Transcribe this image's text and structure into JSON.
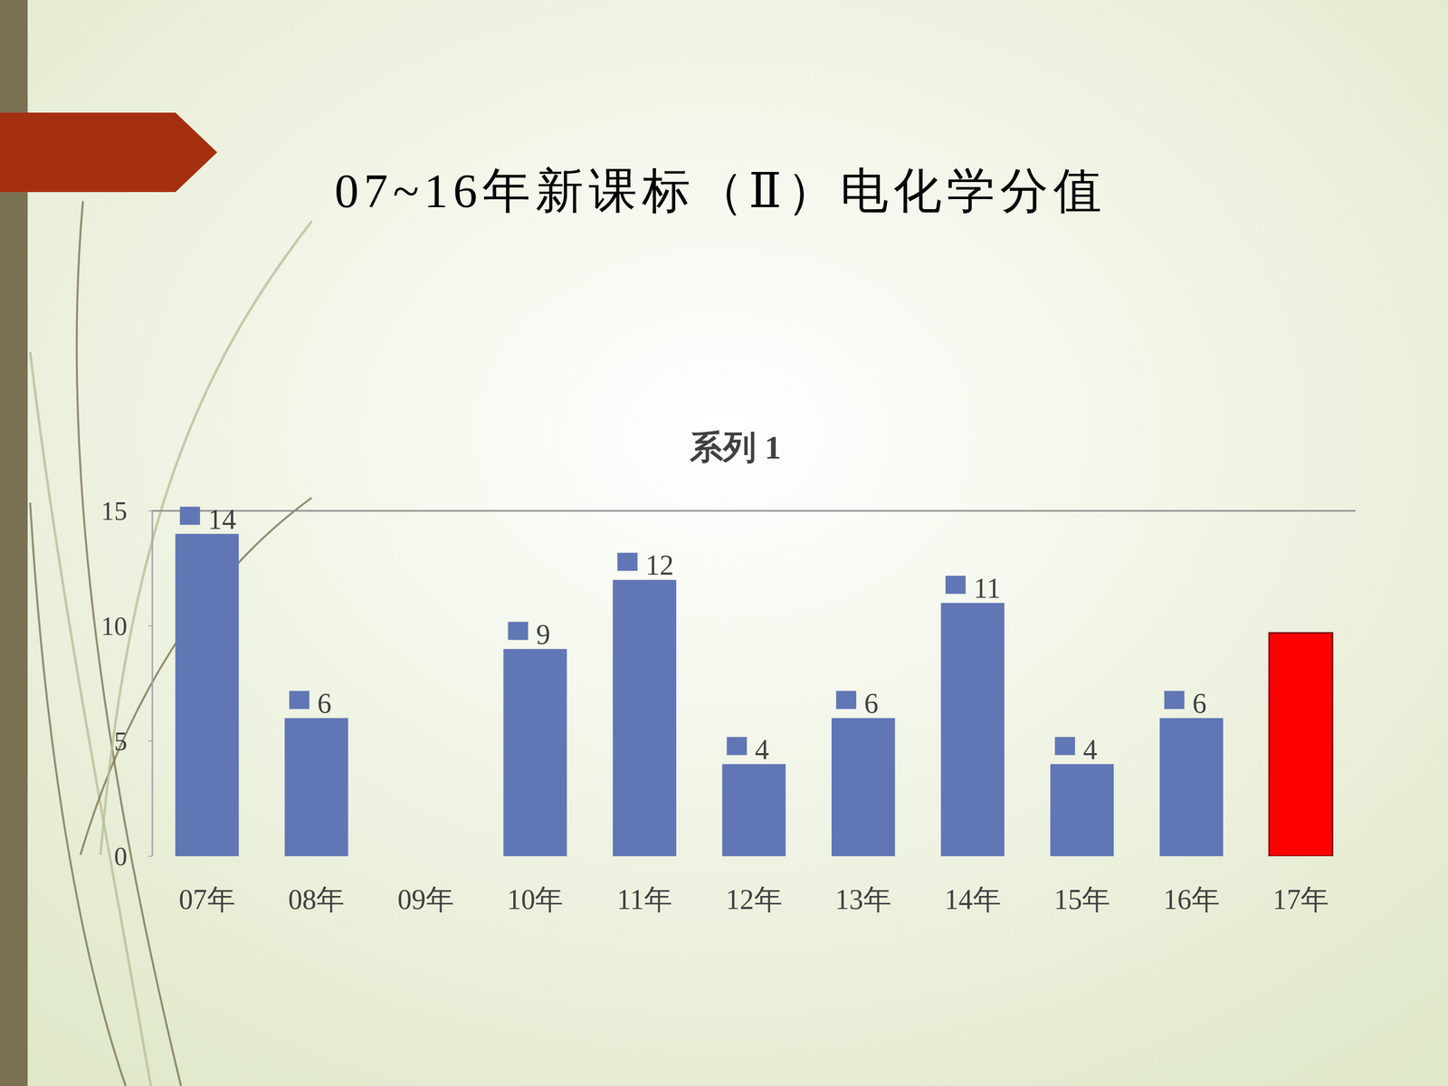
{
  "slide": {
    "title": "07~16年新课标（Ⅱ）电化学分值"
  },
  "chart_data": {
    "type": "bar",
    "title": "系列 1",
    "categories": [
      "07年",
      "08年",
      "09年",
      "10年",
      "11年",
      "12年",
      "13年",
      "14年",
      "15年",
      "16年",
      "17年"
    ],
    "values": [
      14,
      6,
      null,
      9,
      12,
      4,
      6,
      11,
      4,
      6,
      9.7
    ],
    "value_labels": [
      "14",
      "6",
      null,
      "9",
      "12",
      "4",
      "6",
      "11",
      "4",
      "6",
      null
    ],
    "colors": [
      "#6176b5",
      "#6176b5",
      "#6176b5",
      "#6176b5",
      "#6176b5",
      "#6176b5",
      "#6176b5",
      "#6176b5",
      "#6176b5",
      "#6176b5",
      "#ff0000"
    ],
    "ylim": [
      0,
      15
    ],
    "yticks": [
      0,
      5,
      10,
      15
    ],
    "grid": false,
    "data_labels": true
  }
}
